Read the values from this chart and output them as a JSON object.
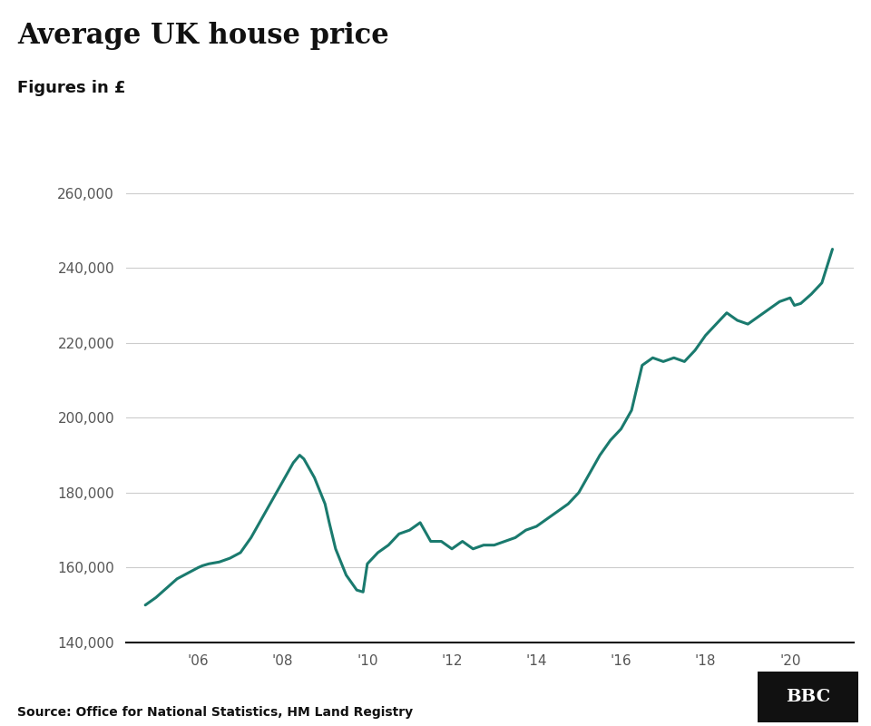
{
  "title": "Average UK house price",
  "subtitle": "Figures in £",
  "source": "Source: Office for National Statistics, HM Land Registry",
  "line_color": "#1a7a6e",
  "background_color": "#ffffff",
  "ylim": [
    140000,
    265000
  ],
  "yticks": [
    140000,
    160000,
    180000,
    200000,
    220000,
    240000,
    260000
  ],
  "xtick_labels": [
    "'06",
    "'08",
    "'10",
    "'12",
    "'14",
    "'16",
    "'18",
    "'20"
  ],
  "xtick_positions": [
    2006,
    2008,
    2010,
    2012,
    2014,
    2016,
    2018,
    2020
  ],
  "xlim_left": 2004.3,
  "xlim_right": 2021.5,
  "data": [
    [
      2004.75,
      150000
    ],
    [
      2005.0,
      152000
    ],
    [
      2005.25,
      154500
    ],
    [
      2005.5,
      157000
    ],
    [
      2005.75,
      158500
    ],
    [
      2006.0,
      160000
    ],
    [
      2006.1,
      160500
    ],
    [
      2006.25,
      161000
    ],
    [
      2006.5,
      161500
    ],
    [
      2006.75,
      162500
    ],
    [
      2007.0,
      164000
    ],
    [
      2007.25,
      168000
    ],
    [
      2007.5,
      173000
    ],
    [
      2007.75,
      178000
    ],
    [
      2008.0,
      183000
    ],
    [
      2008.25,
      188000
    ],
    [
      2008.4,
      190000
    ],
    [
      2008.5,
      189000
    ],
    [
      2008.75,
      184000
    ],
    [
      2009.0,
      177000
    ],
    [
      2009.1,
      172000
    ],
    [
      2009.25,
      165000
    ],
    [
      2009.5,
      158000
    ],
    [
      2009.75,
      154000
    ],
    [
      2009.9,
      153500
    ],
    [
      2010.0,
      161000
    ],
    [
      2010.25,
      164000
    ],
    [
      2010.5,
      166000
    ],
    [
      2010.75,
      169000
    ],
    [
      2011.0,
      170000
    ],
    [
      2011.25,
      172000
    ],
    [
      2011.5,
      167000
    ],
    [
      2011.75,
      167000
    ],
    [
      2012.0,
      165000
    ],
    [
      2012.25,
      167000
    ],
    [
      2012.5,
      165000
    ],
    [
      2012.75,
      166000
    ],
    [
      2013.0,
      166000
    ],
    [
      2013.25,
      167000
    ],
    [
      2013.5,
      168000
    ],
    [
      2013.75,
      170000
    ],
    [
      2014.0,
      171000
    ],
    [
      2014.25,
      173000
    ],
    [
      2014.5,
      175000
    ],
    [
      2014.75,
      177000
    ],
    [
      2015.0,
      180000
    ],
    [
      2015.25,
      185000
    ],
    [
      2015.5,
      190000
    ],
    [
      2015.75,
      194000
    ],
    [
      2016.0,
      197000
    ],
    [
      2016.25,
      202000
    ],
    [
      2016.5,
      214000
    ],
    [
      2016.75,
      216000
    ],
    [
      2017.0,
      215000
    ],
    [
      2017.25,
      216000
    ],
    [
      2017.5,
      215000
    ],
    [
      2017.75,
      218000
    ],
    [
      2018.0,
      222000
    ],
    [
      2018.25,
      225000
    ],
    [
      2018.5,
      228000
    ],
    [
      2018.75,
      226000
    ],
    [
      2019.0,
      225000
    ],
    [
      2019.25,
      227000
    ],
    [
      2019.5,
      229000
    ],
    [
      2019.75,
      231000
    ],
    [
      2020.0,
      232000
    ],
    [
      2020.1,
      230000
    ],
    [
      2020.25,
      230500
    ],
    [
      2020.5,
      233000
    ],
    [
      2020.75,
      236000
    ],
    [
      2021.0,
      245000
    ]
  ]
}
